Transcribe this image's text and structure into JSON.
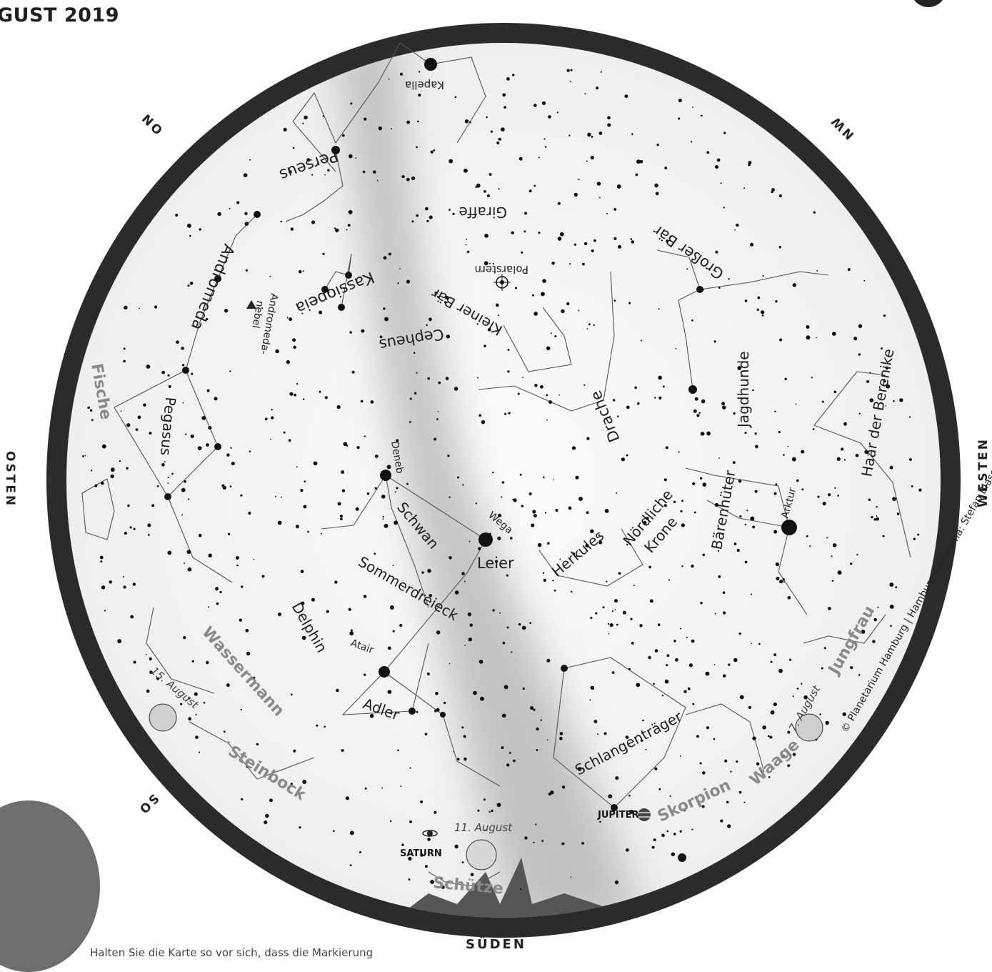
{
  "header": {
    "title": "GUST 2019"
  },
  "directions": {
    "south": "SÜDEN",
    "east": "OSTEN",
    "west": "WESTEN",
    "northeast": "NO",
    "northwest": "NW",
    "southeast": "SO"
  },
  "colors": {
    "sky": "#f6f6f6",
    "horizon": "#2b2b2b",
    "milky_way": "#b8b8b8",
    "zodiac": "#8a8a8a"
  },
  "constellations": [
    "Kassiopeia",
    "Andromeda",
    "Perseus",
    "Giraffe",
    "Großer Bär",
    "Kleiner Bär",
    "Cepheus",
    "Drache",
    "Jagdhunde",
    "Haar der Berenike",
    "Pegasus",
    "Schwan",
    "Leier",
    "Herkules",
    "Nördliche",
    "Krone",
    "Bärenhüter",
    "Delphin",
    "Adler",
    "Schlangenträger",
    "Sommerdreieck",
    "Andromeda-",
    "nebel"
  ],
  "zodiac": [
    "Fische",
    "Wassermann",
    "Steinbock",
    "Schütze",
    "Skorpion",
    "Waage",
    "Jungfrau"
  ],
  "stars": [
    "Kapella",
    "Polarstern",
    "Deneb",
    "Wega",
    "Arktur",
    "Atair"
  ],
  "planets": [
    "SATURN",
    "JUPITER"
  ],
  "moon_dates": [
    "15. August",
    "11. August",
    "7. August"
  ],
  "credit": "© Planetarium Hamburg | Hamburg-Panorama: Stefan Blaser",
  "footer": {
    "instruction": "Halten Sie die Karte so vor sich, dass die Markierung"
  }
}
